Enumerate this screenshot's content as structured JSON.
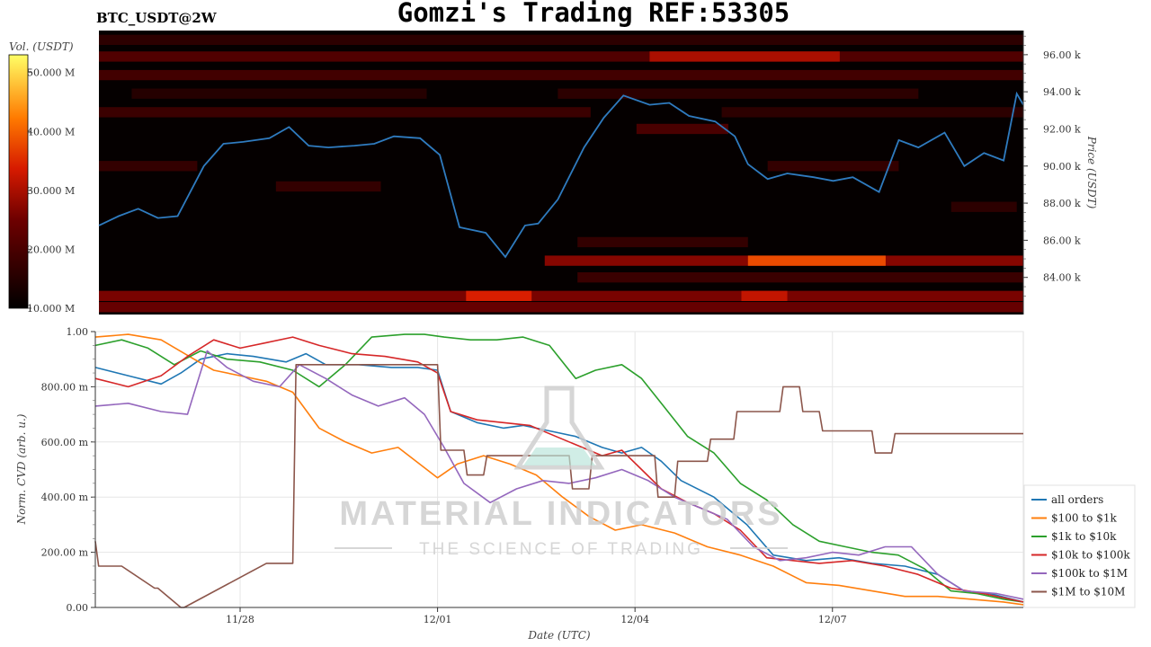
{
  "header": {
    "title": "Gomzi's Trading REF:53305",
    "symbol": "BTC_USDT@2W"
  },
  "watermark": {
    "brand": "MATERIAL INDICATORS",
    "tagline": "THE SCIENCE OF TRADING"
  },
  "colors": {
    "heat_bg": "#050000",
    "price_line": "#2f7bbf",
    "grid": "#e6e6e6",
    "watermark": "#cfcfcf",
    "watermark_accent": "#b9e3da"
  },
  "chart_data": [
    {
      "type": "heatmap",
      "title": "",
      "colorbar": {
        "label": "Vol. (USDT)",
        "ticks": [
          "50.000 M",
          "40.000 M",
          "30.000 M",
          "20.000 M",
          "10.000 M"
        ],
        "range": [
          10,
          53
        ],
        "unit": "M USDT"
      },
      "ylabel": "Price (USDT)",
      "yticks": [
        "96.00 k",
        "94.00 k",
        "92.00 k",
        "90.00 k",
        "88.00 k",
        "86.00 k",
        "84.00 k"
      ],
      "ylim": [
        82,
        97.3
      ],
      "xlim": [
        0,
        14.1
      ],
      "liquidity_bands": [
        {
          "price": 96.8,
          "x0": 0,
          "x1": 14.1,
          "volume": 16
        },
        {
          "price": 95.9,
          "x0": 0,
          "x1": 14.1,
          "volume": 21
        },
        {
          "price": 95.9,
          "x0": 8.4,
          "x1": 11.3,
          "volume": 30
        },
        {
          "price": 94.9,
          "x0": 0,
          "x1": 14.1,
          "volume": 19
        },
        {
          "price": 93.9,
          "x0": 0.5,
          "x1": 5.0,
          "volume": 15
        },
        {
          "price": 93.9,
          "x0": 7.0,
          "x1": 12.5,
          "volume": 16
        },
        {
          "price": 92.9,
          "x0": 0,
          "x1": 7.5,
          "volume": 18
        },
        {
          "price": 92.9,
          "x0": 9.5,
          "x1": 14.1,
          "volume": 16
        },
        {
          "price": 92.0,
          "x0": 8.2,
          "x1": 9.6,
          "volume": 20
        },
        {
          "price": 90.0,
          "x0": 0,
          "x1": 1.5,
          "volume": 17
        },
        {
          "price": 90.0,
          "x0": 10.2,
          "x1": 12.2,
          "volume": 17
        },
        {
          "price": 88.9,
          "x0": 2.7,
          "x1": 4.3,
          "volume": 17
        },
        {
          "price": 87.8,
          "x0": 13.0,
          "x1": 14.0,
          "volume": 16
        },
        {
          "price": 85.9,
          "x0": 7.3,
          "x1": 9.9,
          "volume": 17
        },
        {
          "price": 84.9,
          "x0": 6.8,
          "x1": 14.1,
          "volume": 27
        },
        {
          "price": 84.9,
          "x0": 9.9,
          "x1": 12.0,
          "volume": 38
        },
        {
          "price": 84.0,
          "x0": 7.3,
          "x1": 14.1,
          "volume": 18
        },
        {
          "price": 83.0,
          "x0": 0,
          "x1": 14.1,
          "volume": 26
        },
        {
          "price": 83.0,
          "x0": 5.6,
          "x1": 6.6,
          "volume": 34
        },
        {
          "price": 83.0,
          "x0": 9.8,
          "x1": 10.5,
          "volume": 32
        },
        {
          "price": 82.4,
          "x0": 0,
          "x1": 14.1,
          "volume": 24
        }
      ],
      "price_series": {
        "name": "",
        "x": [
          0,
          0.3,
          0.6,
          0.9,
          1.2,
          1.6,
          1.9,
          2.2,
          2.6,
          2.9,
          3.2,
          3.5,
          3.9,
          4.2,
          4.5,
          4.9,
          5.2,
          5.5,
          5.9,
          6.2,
          6.5,
          6.7,
          7.0,
          7.4,
          7.7,
          8.0,
          8.4,
          8.7,
          9.0,
          9.4,
          9.7,
          9.9,
          10.2,
          10.5,
          10.9,
          11.2,
          11.5,
          11.9,
          12.2,
          12.5,
          12.9,
          13.2,
          13.5,
          13.8,
          14.0,
          14.1
        ],
        "y": [
          86.8,
          87.3,
          87.7,
          87.2,
          87.3,
          90.0,
          91.2,
          91.3,
          91.5,
          92.1,
          91.1,
          91.0,
          91.1,
          91.2,
          91.6,
          91.5,
          90.6,
          86.7,
          86.4,
          85.1,
          86.8,
          86.9,
          88.2,
          91.0,
          92.6,
          93.8,
          93.3,
          93.4,
          92.7,
          92.4,
          91.6,
          90.1,
          89.3,
          89.6,
          89.4,
          89.2,
          89.4,
          88.6,
          91.4,
          91.0,
          91.8,
          90.0,
          90.7,
          90.3,
          93.9,
          93.3
        ]
      }
    },
    {
      "type": "line",
      "title": "",
      "xlabel": "Date (UTC)",
      "ylabel": "Norm. CVD (arb. u.)",
      "xtick_labels": [
        "11/28",
        "12/01",
        "12/04",
        "12/07"
      ],
      "xtick_positions": [
        2.2,
        5.2,
        8.2,
        11.2
      ],
      "ytick_labels": [
        "1.00",
        "800.00 m",
        "600.00 m",
        "400.00 m",
        "200.00 m",
        "0.00"
      ],
      "ylim": [
        0,
        1
      ],
      "xlim": [
        0,
        14.1
      ],
      "grid": true,
      "legend_position": "right",
      "series": [
        {
          "name": "all orders",
          "color": "#1f77b4",
          "x": [
            0,
            0.5,
            1.0,
            1.3,
            1.6,
            2.0,
            2.4,
            2.9,
            3.2,
            3.5,
            4.0,
            4.5,
            4.9,
            5.2,
            5.4,
            5.8,
            6.2,
            6.5,
            6.9,
            7.3,
            7.7,
            8.0,
            8.3,
            8.6,
            8.9,
            9.4,
            9.9,
            10.3,
            10.8,
            11.3,
            11.8,
            12.3,
            12.8,
            13.2,
            13.6,
            14.1
          ],
          "y": [
            0.87,
            0.84,
            0.81,
            0.85,
            0.9,
            0.92,
            0.91,
            0.89,
            0.92,
            0.88,
            0.88,
            0.87,
            0.87,
            0.86,
            0.71,
            0.67,
            0.65,
            0.66,
            0.64,
            0.62,
            0.58,
            0.56,
            0.58,
            0.53,
            0.46,
            0.4,
            0.3,
            0.19,
            0.17,
            0.18,
            0.16,
            0.15,
            0.12,
            0.06,
            0.05,
            0.02
          ]
        },
        {
          "name": "$100 to $1k",
          "color": "#ff7f0e",
          "x": [
            0,
            0.5,
            1.0,
            1.5,
            1.8,
            2.2,
            2.6,
            3.0,
            3.4,
            3.8,
            4.2,
            4.6,
            5.2,
            5.5,
            5.9,
            6.3,
            6.7,
            7.1,
            7.5,
            7.9,
            8.3,
            8.8,
            9.3,
            9.8,
            10.3,
            10.8,
            11.3,
            11.8,
            12.3,
            12.8,
            13.3,
            13.8,
            14.1
          ],
          "y": [
            0.98,
            0.99,
            0.97,
            0.9,
            0.86,
            0.84,
            0.82,
            0.78,
            0.65,
            0.6,
            0.56,
            0.58,
            0.47,
            0.52,
            0.55,
            0.52,
            0.48,
            0.4,
            0.33,
            0.28,
            0.3,
            0.27,
            0.22,
            0.19,
            0.15,
            0.09,
            0.08,
            0.06,
            0.04,
            0.04,
            0.03,
            0.02,
            0.01
          ]
        },
        {
          "name": "$1k to $10k",
          "color": "#2ca02c",
          "x": [
            0,
            0.4,
            0.8,
            1.2,
            1.6,
            2.0,
            2.5,
            3.0,
            3.4,
            3.8,
            4.2,
            4.7,
            5.0,
            5.3,
            5.7,
            6.1,
            6.5,
            6.9,
            7.3,
            7.6,
            8.0,
            8.3,
            8.6,
            9.0,
            9.4,
            9.8,
            10.2,
            10.6,
            11.0,
            11.4,
            11.8,
            12.2,
            12.6,
            13.0,
            13.4,
            13.8,
            14.1
          ],
          "y": [
            0.95,
            0.97,
            0.94,
            0.88,
            0.93,
            0.9,
            0.89,
            0.86,
            0.8,
            0.88,
            0.98,
            0.99,
            0.99,
            0.98,
            0.97,
            0.97,
            0.98,
            0.95,
            0.83,
            0.86,
            0.88,
            0.83,
            0.74,
            0.62,
            0.56,
            0.45,
            0.39,
            0.3,
            0.24,
            0.22,
            0.2,
            0.19,
            0.14,
            0.06,
            0.05,
            0.03,
            0.02
          ]
        },
        {
          "name": "$10k to $100k",
          "color": "#d62728",
          "x": [
            0,
            0.5,
            1.0,
            1.4,
            1.8,
            2.2,
            2.6,
            3.0,
            3.4,
            3.9,
            4.4,
            4.9,
            5.2,
            5.4,
            5.8,
            6.2,
            6.6,
            7.0,
            7.4,
            7.7,
            8.0,
            8.3,
            8.6,
            9.0,
            9.4,
            9.8,
            10.2,
            10.6,
            11.0,
            11.5,
            12.0,
            12.5,
            13.0,
            13.5,
            14.1
          ],
          "y": [
            0.83,
            0.8,
            0.84,
            0.91,
            0.97,
            0.94,
            0.96,
            0.98,
            0.95,
            0.92,
            0.91,
            0.89,
            0.85,
            0.71,
            0.68,
            0.67,
            0.66,
            0.62,
            0.58,
            0.55,
            0.57,
            0.5,
            0.43,
            0.38,
            0.34,
            0.28,
            0.18,
            0.17,
            0.16,
            0.17,
            0.15,
            0.12,
            0.07,
            0.05,
            0.02
          ]
        },
        {
          "name": "$100k to $1M",
          "color": "#9467bd",
          "x": [
            0,
            0.5,
            1.0,
            1.4,
            1.7,
            2.0,
            2.4,
            2.8,
            3.1,
            3.5,
            3.9,
            4.3,
            4.7,
            5.0,
            5.3,
            5.6,
            6.0,
            6.4,
            6.8,
            7.2,
            7.6,
            8.0,
            8.4,
            8.8,
            9.2,
            9.6,
            10.0,
            10.4,
            10.8,
            11.2,
            11.6,
            12.0,
            12.4,
            12.8,
            13.2,
            13.7,
            14.1
          ],
          "y": [
            0.73,
            0.74,
            0.71,
            0.7,
            0.93,
            0.87,
            0.82,
            0.8,
            0.88,
            0.83,
            0.77,
            0.73,
            0.76,
            0.7,
            0.58,
            0.45,
            0.38,
            0.43,
            0.46,
            0.45,
            0.47,
            0.5,
            0.46,
            0.4,
            0.36,
            0.32,
            0.22,
            0.17,
            0.18,
            0.2,
            0.19,
            0.22,
            0.22,
            0.12,
            0.06,
            0.05,
            0.03
          ]
        },
        {
          "name": "$1M to $10M",
          "color": "#8c564b",
          "x": [
            0,
            0.05,
            0.4,
            0.9,
            0.95,
            1.3,
            1.35,
            2.6,
            2.65,
            3.0,
            3.05,
            5.2,
            5.25,
            5.6,
            5.65,
            5.9,
            5.95,
            7.2,
            7.25,
            7.5,
            7.55,
            8.5,
            8.55,
            8.8,
            8.85,
            9.3,
            9.35,
            9.7,
            9.75,
            9.9,
            9.95,
            10.4,
            10.45,
            10.7,
            10.75,
            11.0,
            11.05,
            11.8,
            11.85,
            12.1,
            12.15,
            14.1
          ],
          "y": [
            0.24,
            0.15,
            0.15,
            0.07,
            0.07,
            0.0,
            0.0,
            0.16,
            0.16,
            0.16,
            0.88,
            0.88,
            0.57,
            0.57,
            0.48,
            0.48,
            0.55,
            0.55,
            0.43,
            0.43,
            0.55,
            0.55,
            0.4,
            0.4,
            0.53,
            0.53,
            0.61,
            0.61,
            0.71,
            0.71,
            0.71,
            0.71,
            0.8,
            0.8,
            0.71,
            0.71,
            0.64,
            0.64,
            0.56,
            0.56,
            0.63,
            0.63
          ]
        }
      ]
    }
  ]
}
